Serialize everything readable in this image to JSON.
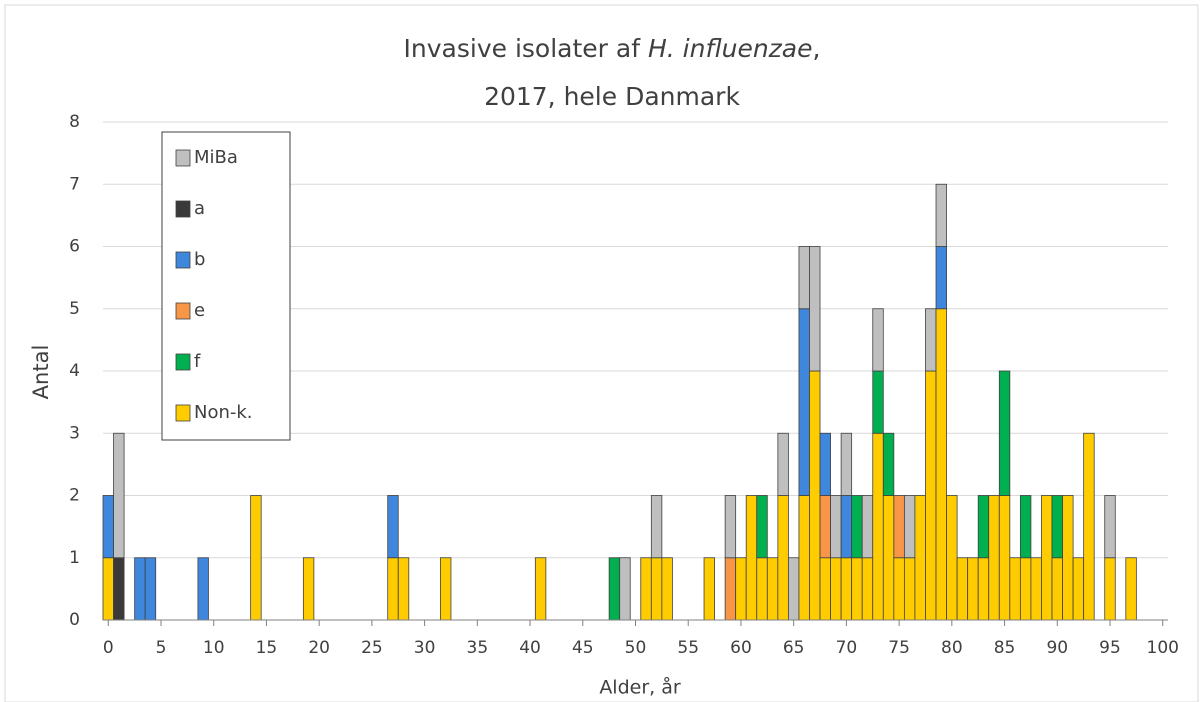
{
  "chart_data": {
    "type": "stacked_histogram",
    "title_lines": [
      [
        "Invasive isolater af ",
        "H. influenzae",
        ","
      ],
      [
        "2017, hele Danmark"
      ]
    ],
    "xlabel": "Alder, år",
    "ylabel": "Antal",
    "x": [
      0,
      1,
      3,
      4,
      9,
      14,
      19,
      27,
      28,
      32,
      41,
      48,
      49,
      51,
      52,
      53,
      57,
      59,
      60,
      61,
      62,
      63,
      64,
      65,
      66,
      67,
      68,
      69,
      70,
      71,
      72,
      73,
      74,
      75,
      76,
      77,
      78,
      79,
      80,
      81,
      82,
      83,
      84,
      85,
      86,
      87,
      88,
      89,
      90,
      91,
      92,
      93,
      95,
      97
    ],
    "series": [
      {
        "name": "Non-k.",
        "color": "#ffcc00",
        "values": [
          1,
          0,
          0,
          0,
          0,
          2,
          1,
          1,
          1,
          1,
          1,
          0,
          0,
          1,
          1,
          1,
          1,
          0,
          1,
          2,
          1,
          1,
          2,
          0,
          2,
          4,
          1,
          1,
          1,
          1,
          1,
          3,
          2,
          1,
          1,
          2,
          4,
          5,
          2,
          1,
          1,
          1,
          2,
          2,
          1,
          1,
          1,
          2,
          1,
          2,
          1,
          3,
          1,
          1
        ]
      },
      {
        "name": "f",
        "color": "#00b050",
        "values": [
          0,
          0,
          0,
          0,
          0,
          0,
          0,
          0,
          0,
          0,
          0,
          1,
          0,
          0,
          0,
          0,
          0,
          0,
          0,
          0,
          1,
          0,
          0,
          0,
          0,
          0,
          0,
          0,
          0,
          1,
          0,
          1,
          1,
          0,
          0,
          0,
          0,
          0,
          0,
          0,
          0,
          1,
          0,
          2,
          0,
          1,
          0,
          0,
          1,
          0,
          0,
          0,
          0,
          0
        ]
      },
      {
        "name": "e",
        "color": "#f79646",
        "values": [
          0,
          0,
          0,
          0,
          0,
          0,
          0,
          0,
          0,
          0,
          0,
          0,
          0,
          0,
          0,
          0,
          0,
          1,
          0,
          0,
          0,
          0,
          0,
          0,
          0,
          0,
          1,
          0,
          0,
          0,
          0,
          0,
          0,
          1,
          0,
          0,
          0,
          0,
          0,
          0,
          0,
          0,
          0,
          0,
          0,
          0,
          0,
          0,
          0,
          0,
          0,
          0,
          0,
          0
        ]
      },
      {
        "name": "b",
        "color": "#3f87dc",
        "values": [
          1,
          0,
          1,
          1,
          1,
          0,
          0,
          1,
          0,
          0,
          0,
          0,
          0,
          0,
          0,
          0,
          0,
          0,
          0,
          0,
          0,
          0,
          0,
          0,
          3,
          0,
          1,
          0,
          1,
          0,
          0,
          0,
          0,
          0,
          0,
          0,
          0,
          1,
          0,
          0,
          0,
          0,
          0,
          0,
          0,
          0,
          0,
          0,
          0,
          0,
          0,
          0,
          0,
          0
        ]
      },
      {
        "name": "a",
        "color": "#3a3a3a",
        "values": [
          0,
          1,
          0,
          0,
          0,
          0,
          0,
          0,
          0,
          0,
          0,
          0,
          0,
          0,
          0,
          0,
          0,
          0,
          0,
          0,
          0,
          0,
          0,
          0,
          0,
          0,
          0,
          0,
          0,
          0,
          0,
          0,
          0,
          0,
          0,
          0,
          0,
          0,
          0,
          0,
          0,
          0,
          0,
          0,
          0,
          0,
          0,
          0,
          0,
          0,
          0,
          0,
          0,
          0
        ]
      },
      {
        "name": "MiBa",
        "color": "#bfbfbf",
        "values": [
          0,
          2,
          0,
          0,
          0,
          0,
          0,
          0,
          0,
          0,
          0,
          0,
          1,
          0,
          1,
          0,
          0,
          1,
          0,
          0,
          0,
          0,
          1,
          1,
          1,
          2,
          0,
          1,
          1,
          0,
          1,
          1,
          0,
          0,
          1,
          0,
          1,
          1,
          0,
          0,
          0,
          0,
          0,
          0,
          0,
          0,
          0,
          0,
          0,
          0,
          0,
          0,
          1,
          0
        ]
      }
    ],
    "xlim": [
      -0.5,
      100.5
    ],
    "xticks": [
      0,
      5,
      10,
      15,
      20,
      25,
      30,
      35,
      40,
      45,
      50,
      55,
      60,
      65,
      70,
      75,
      80,
      85,
      90,
      95,
      100
    ],
    "ylim": [
      0,
      8
    ],
    "yticks": [
      0,
      1,
      2,
      3,
      4,
      5,
      6,
      7,
      8
    ],
    "grid": true,
    "legend": "upper left"
  }
}
